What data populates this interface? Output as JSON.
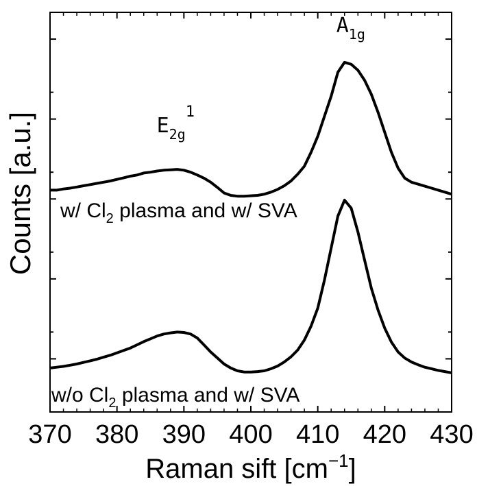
{
  "chart_data": {
    "type": "line",
    "xlabel": "Raman sift [cm",
    "xlabel_sup": "−1",
    "xlabel_end": "]",
    "ylabel": "Counts [a.u.]",
    "xlim": [
      370,
      430
    ],
    "ylim": [
      0,
      1
    ],
    "x_ticks": [
      370,
      380,
      390,
      400,
      410,
      420,
      430
    ],
    "y_tick_labels_shown": false,
    "grid": false,
    "series": [
      {
        "label_main": "w/ Cl",
        "label_sub": "2",
        "label_rest": " plasma and w/ SVA",
        "x": [
          370,
          371,
          372,
          373,
          374,
          375,
          376,
          377,
          378,
          379,
          380,
          381,
          382,
          383,
          384,
          385,
          386,
          387,
          388,
          389,
          390,
          391,
          392,
          393,
          394,
          395,
          396,
          397,
          398,
          399,
          400,
          401,
          402,
          403,
          404,
          405,
          406,
          407,
          408,
          409,
          410,
          411,
          412,
          413,
          414,
          415,
          416,
          417,
          418,
          419,
          420,
          421,
          422,
          423,
          424,
          425,
          426,
          427,
          428,
          429,
          430
        ],
        "y": [
          0.555,
          0.555,
          0.558,
          0.56,
          0.563,
          0.566,
          0.569,
          0.572,
          0.575,
          0.578,
          0.582,
          0.586,
          0.59,
          0.593,
          0.598,
          0.6,
          0.603,
          0.605,
          0.606,
          0.607,
          0.605,
          0.6,
          0.593,
          0.585,
          0.575,
          0.562,
          0.548,
          0.542,
          0.54,
          0.54,
          0.541,
          0.542,
          0.545,
          0.55,
          0.557,
          0.566,
          0.578,
          0.595,
          0.615,
          0.65,
          0.69,
          0.74,
          0.79,
          0.85,
          0.875,
          0.87,
          0.855,
          0.83,
          0.795,
          0.75,
          0.7,
          0.65,
          0.61,
          0.585,
          0.575,
          0.57,
          0.565,
          0.56,
          0.555,
          0.55,
          0.545
        ]
      },
      {
        "label_main": "w/o Cl",
        "label_sub": "2",
        "label_rest": " plasma and w/ SVA",
        "x": [
          370,
          371,
          372,
          373,
          374,
          375,
          376,
          377,
          378,
          379,
          380,
          381,
          382,
          383,
          384,
          385,
          386,
          387,
          388,
          389,
          390,
          391,
          392,
          393,
          394,
          395,
          396,
          397,
          398,
          399,
          400,
          401,
          402,
          403,
          404,
          405,
          406,
          407,
          408,
          409,
          410,
          411,
          412,
          413,
          414,
          415,
          416,
          417,
          418,
          419,
          420,
          421,
          422,
          423,
          424,
          425,
          426,
          427,
          428,
          429,
          430
        ],
        "y": [
          0.11,
          0.112,
          0.114,
          0.117,
          0.12,
          0.124,
          0.128,
          0.132,
          0.137,
          0.142,
          0.148,
          0.154,
          0.16,
          0.168,
          0.176,
          0.183,
          0.19,
          0.195,
          0.198,
          0.2,
          0.199,
          0.195,
          0.185,
          0.168,
          0.15,
          0.135,
          0.12,
          0.11,
          0.103,
          0.1,
          0.1,
          0.101,
          0.103,
          0.108,
          0.115,
          0.125,
          0.138,
          0.155,
          0.18,
          0.215,
          0.26,
          0.33,
          0.41,
          0.49,
          0.53,
          0.51,
          0.45,
          0.38,
          0.31,
          0.255,
          0.21,
          0.175,
          0.15,
          0.135,
          0.125,
          0.118,
          0.112,
          0.108,
          0.104,
          0.101,
          0.098
        ]
      }
    ],
    "annotations": [
      {
        "base": "E",
        "sub": "2g",
        "sup": "1",
        "x": 389.0,
        "y": 0.7
      },
      {
        "base": "A",
        "sub": "1g",
        "sup": "",
        "x": 414.0,
        "y": 0.95
      }
    ]
  }
}
